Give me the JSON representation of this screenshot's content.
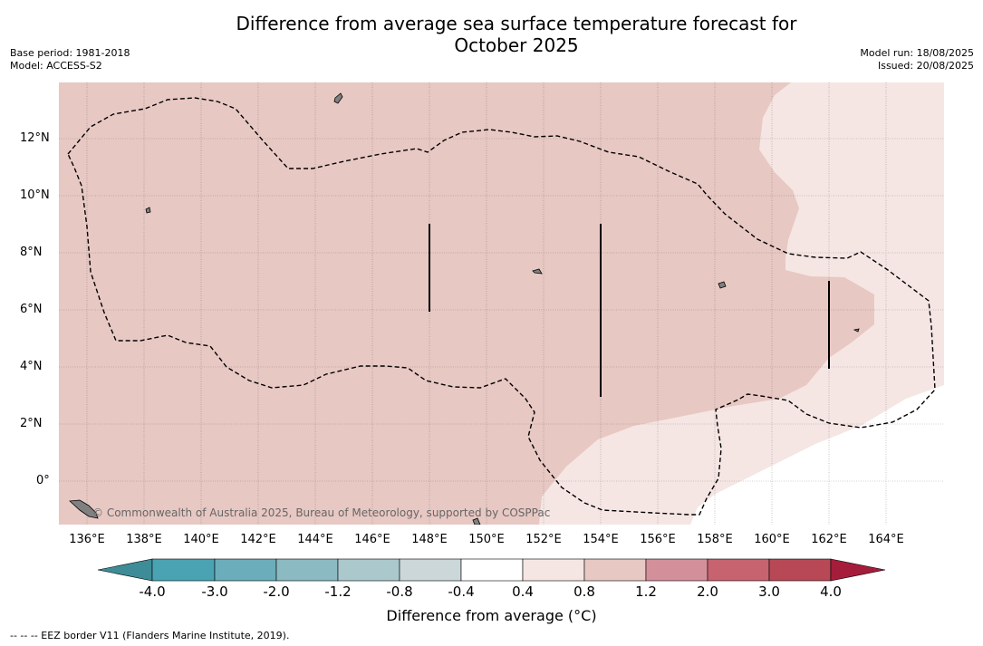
{
  "title": "Difference from average sea surface temperature forecast for October 2025",
  "title_line1": "Difference from average sea surface temperature forecast for",
  "title_line2": "October 2025",
  "base_period": "Base period: 1981-2018",
  "model": "Model: ACCESS-S2",
  "model_run": "Model run: 18/08/2025",
  "issued": "Issued: 20/08/2025",
  "copyright": "© Commonwealth of Australia 2025, Bureau of Meteorology, supported by COSPPac",
  "footnote": "--  --  -- EEZ border V11 (Flanders Marine Institute, 2019).",
  "colorbar": {
    "label": "Difference from average (°C)",
    "ticks": [
      "-4.0",
      "-3.0",
      "-2.0",
      "-1.2",
      "-0.8",
      "-0.4",
      "0.4",
      "0.8",
      "1.2",
      "2.0",
      "3.0",
      "4.0"
    ],
    "colors": [
      "#3e8c97",
      "#4aa3b3",
      "#6badba",
      "#8bbac3",
      "#abc9cd",
      "#cbd7d9",
      "#ffffff",
      "#f5e6e4",
      "#e8c8c3",
      "#d4909a",
      "#c7636f",
      "#b84856",
      "#a51d3b"
    ]
  },
  "axes": {
    "lon_ticks": [
      "136°E",
      "138°E",
      "140°E",
      "142°E",
      "144°E",
      "146°E",
      "148°E",
      "150°E",
      "152°E",
      "154°E",
      "156°E",
      "158°E",
      "160°E",
      "162°E",
      "164°E"
    ],
    "lat_ticks": [
      "12°N",
      "10°N",
      "8°N",
      "6°N",
      "4°N",
      "2°N",
      "0°"
    ]
  },
  "map_colors": {
    "anomaly_0_8_to_1_2": "#e8c8c3",
    "anomaly_0_4_to_0_8": "#f5e6e4",
    "anomaly_neutral": "#ffffff",
    "land": "#808080",
    "eez_border": "#000000"
  }
}
